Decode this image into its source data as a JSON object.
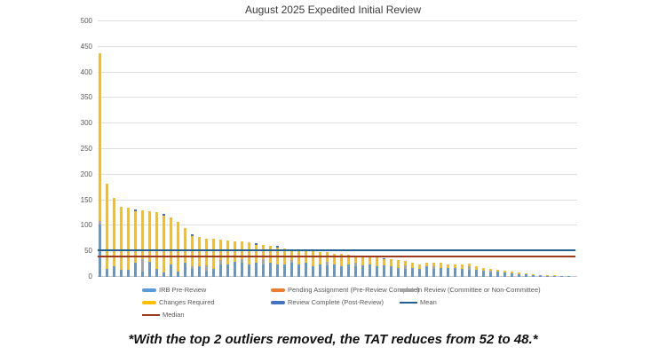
{
  "title": "August 2025 Expedited Initial Review",
  "note": "*With the top 2 outliers removed, the TAT reduces from 52 to 48.*",
  "chart_data": {
    "type": "bar",
    "stacked": true,
    "title": "August 2025 Expedited Initial Review",
    "xlabel": "",
    "ylabel": "",
    "x_axis": {
      "num_bars": 67,
      "tick_labels_visible": false
    },
    "y_axis": {
      "min": 0,
      "max": 500,
      "tick_step": 50,
      "ticks": [
        0,
        50,
        100,
        150,
        200,
        250,
        300,
        350,
        400,
        450,
        500
      ]
    },
    "grid": true,
    "series": [
      {
        "name": "IRB Pre-Review",
        "color": "#5B9BD5",
        "values": [
          103,
          16,
          21,
          14,
          14,
          28,
          10,
          30,
          16,
          8,
          25,
          10,
          27,
          15,
          20,
          13,
          15,
          25,
          25,
          30,
          28,
          25,
          28,
          25,
          28,
          25,
          25,
          28,
          25,
          27,
          20,
          25,
          22,
          25,
          20,
          25,
          20,
          22,
          25,
          20,
          22,
          20,
          18,
          15,
          18,
          15,
          20,
          15,
          18,
          17,
          18,
          16,
          14,
          14,
          12,
          8,
          10,
          8,
          7,
          5,
          5,
          3,
          3,
          2,
          2,
          1,
          1
        ]
      },
      {
        "name": "Pending Assignment (Pre-Review Complete)",
        "color": "#ED7D31",
        "values": [
          0,
          0,
          0,
          0,
          0,
          0,
          0,
          0,
          0,
          0,
          0,
          0,
          0,
          0,
          0,
          0,
          0,
          0,
          0,
          0,
          0,
          0,
          0,
          0,
          0,
          0,
          0,
          0,
          0,
          0,
          0,
          0,
          0,
          0,
          0,
          0,
          0,
          0,
          0,
          0,
          0,
          0,
          0,
          0,
          0,
          0,
          0,
          0,
          0,
          0,
          0,
          0,
          0,
          0,
          0,
          0,
          0,
          0,
          0,
          0,
          0,
          0,
          0,
          0,
          0,
          0,
          0
        ]
      },
      {
        "name": "In Review (Committee or Non-Committee)",
        "color": "#A5A5A5",
        "values": [
          6,
          0,
          0,
          0,
          0,
          0,
          24,
          0,
          0,
          0,
          0,
          0,
          0,
          6,
          0,
          10,
          0,
          8,
          0,
          0,
          6,
          0,
          0,
          10,
          0,
          0,
          0,
          5,
          0,
          0,
          0,
          0,
          8,
          0,
          0,
          0,
          8,
          0,
          0,
          0,
          0,
          0,
          0,
          8,
          0,
          0,
          0,
          6,
          0,
          0,
          0,
          0,
          7,
          0,
          0,
          5,
          0,
          0,
          0,
          0,
          0,
          0,
          0,
          0,
          0,
          0,
          0
        ]
      },
      {
        "name": "Changes Required",
        "color": "#FFC000",
        "values": [
          328,
          166,
          134,
          124,
          122,
          100,
          96,
          99,
          111,
          112,
          92,
          97,
          69,
          59,
          58,
          52,
          59,
          40,
          46,
          40,
          36,
          43,
          35,
          28,
          33,
          32,
          31,
          21,
          27,
          24,
          30,
          24,
          18,
          21,
          25,
          19,
          14,
          18,
          14,
          18,
          12,
          15,
          15,
          8,
          10,
          10,
          8,
          6,
          9,
          8,
          7,
          8,
          5,
          6,
          6,
          2,
          4,
          4,
          3,
          3,
          2,
          2,
          1,
          2,
          1,
          1,
          1
        ]
      },
      {
        "name": "Review Complete (Post-Review)",
        "color": "#4472C4",
        "values": [
          0,
          0,
          0,
          0,
          0,
          4,
          0,
          0,
          0,
          3,
          0,
          0,
          0,
          3,
          0,
          0,
          0,
          0,
          0,
          0,
          0,
          0,
          3,
          0,
          0,
          3,
          0,
          0,
          0,
          0,
          0,
          0,
          0,
          0,
          0,
          0,
          0,
          0,
          0,
          0,
          3,
          0,
          0,
          0,
          0,
          0,
          0,
          0,
          0,
          0,
          0,
          0,
          0,
          0,
          0,
          0,
          0,
          0,
          0,
          0,
          0,
          0,
          0,
          0,
          0,
          0,
          0
        ]
      }
    ],
    "reference_lines": [
      {
        "name": "Mean",
        "value": 52,
        "color": "#255E91"
      },
      {
        "name": "Median",
        "value": 40,
        "color": "#9C3A1D"
      }
    ],
    "legend": {
      "position": "bottom",
      "rows": [
        [
          {
            "label": "IRB Pre-Review",
            "color": "#5B9BD5",
            "swatch": "bar"
          },
          {
            "label": "Pending Assignment (Pre-Review Complete)",
            "color": "#ED7D31",
            "swatch": "bar"
          },
          {
            "label": "In Review (Committee or Non-Committee)",
            "color": "#A5A5A5",
            "swatch": "bar"
          }
        ],
        [
          {
            "label": "Changes Required",
            "color": "#FFC000",
            "swatch": "bar"
          },
          {
            "label": "Review Complete (Post-Review)",
            "color": "#4472C4",
            "swatch": "bar"
          },
          {
            "label": "Mean",
            "color": "#255E91",
            "swatch": "line"
          }
        ],
        [
          {
            "label": "Median",
            "color": "#9C3A1D",
            "swatch": "line"
          }
        ]
      ]
    }
  }
}
